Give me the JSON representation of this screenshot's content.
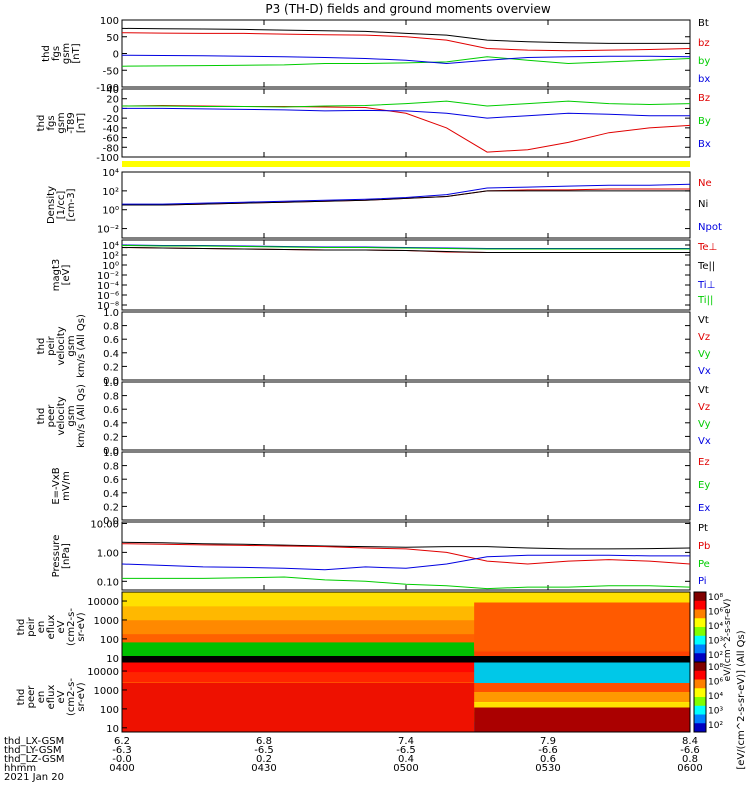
{
  "title": "P3 (TH-D) fields and ground moments overview",
  "colors": {
    "black": "#000000",
    "red": "#e00000",
    "green": "#00cc00",
    "blue": "#0000e0",
    "yellow": "#ffff00"
  },
  "chart_data": [
    {
      "type": "line",
      "id": "fgs_gsm",
      "ylabel": [
        "thd",
        "fgs",
        "gsm",
        "[nT]"
      ],
      "ylim": [
        -100,
        100
      ],
      "yticks": [
        "100",
        "50",
        "0",
        "-50",
        "-100"
      ],
      "tick_values": [
        100,
        50,
        0,
        -50,
        -100
      ],
      "series": [
        {
          "name": "Bt",
          "color": "black",
          "values": [
            75,
            74,
            73,
            72,
            70,
            68,
            66,
            60,
            55,
            40,
            35,
            32,
            30,
            30,
            30
          ]
        },
        {
          "name": "bz",
          "color": "red",
          "values": [
            62,
            61,
            60,
            60,
            58,
            56,
            55,
            50,
            40,
            15,
            10,
            8,
            10,
            12,
            15
          ]
        },
        {
          "name": "by",
          "color": "green",
          "values": [
            -38,
            -37,
            -36,
            -35,
            -34,
            -30,
            -30,
            -28,
            -25,
            -10,
            -20,
            -30,
            -25,
            -20,
            -15
          ]
        },
        {
          "name": "bx",
          "color": "blue",
          "values": [
            -5,
            -6,
            -7,
            -8,
            -10,
            -12,
            -15,
            -20,
            -30,
            -20,
            -12,
            -10,
            -8,
            -8,
            -10
          ]
        }
      ]
    },
    {
      "type": "line",
      "id": "fgs_gsm_t89",
      "ylabel": [
        "thd",
        "fgs",
        "gsm",
        "-T89",
        "[nT]"
      ],
      "ylim": [
        -100,
        40
      ],
      "yticks": [
        "40",
        "20",
        "0",
        "-20",
        "-40",
        "-60",
        "-80",
        "-100"
      ],
      "tick_values": [
        40,
        20,
        0,
        -20,
        -40,
        -60,
        -80,
        -100
      ],
      "series": [
        {
          "name": "Bz",
          "color": "red",
          "values": [
            5,
            6,
            5,
            4,
            4,
            3,
            2,
            -10,
            -40,
            -90,
            -85,
            -70,
            -50,
            -40,
            -35
          ]
        },
        {
          "name": "By",
          "color": "green",
          "values": [
            5,
            5,
            4,
            4,
            3,
            5,
            6,
            10,
            15,
            5,
            10,
            15,
            10,
            8,
            10
          ]
        },
        {
          "name": "Bx",
          "color": "blue",
          "values": [
            0,
            0,
            -1,
            -2,
            -3,
            -5,
            -4,
            -5,
            -10,
            -20,
            -15,
            -10,
            -12,
            -15,
            -15
          ]
        }
      ]
    },
    {
      "type": "line",
      "id": "density",
      "log": true,
      "ylabel": [
        "Density",
        "[1/cc]",
        "[cm-3]"
      ],
      "ylim": [
        -3,
        4
      ],
      "yticks": [
        "10⁴",
        "10²",
        "10⁰",
        "10⁻²"
      ],
      "tick_values": [
        4,
        2,
        0,
        -2
      ],
      "series": [
        {
          "name": "Ne",
          "color": "red",
          "values": [
            0.5,
            0.5,
            0.6,
            0.7,
            0.8,
            0.9,
            1.0,
            1.2,
            1.4,
            2.0,
            2.1,
            2.1,
            2.2,
            2.2,
            2.2
          ]
        },
        {
          "name": "Ni",
          "color": "black",
          "values": [
            0.5,
            0.5,
            0.6,
            0.7,
            0.8,
            0.9,
            1.0,
            1.2,
            1.4,
            2.0,
            2.0,
            2.0,
            2.0,
            2.0,
            2.0
          ]
        },
        {
          "name": "Npot",
          "color": "blue",
          "values": [
            0.6,
            0.6,
            0.7,
            0.8,
            0.9,
            1.0,
            1.1,
            1.3,
            1.6,
            2.3,
            2.4,
            2.5,
            2.6,
            2.6,
            2.7
          ]
        }
      ]
    },
    {
      "type": "line",
      "id": "temperature",
      "log": true,
      "ylabel": [
        "magt3",
        "[eV]"
      ],
      "ylim": [
        -9,
        5
      ],
      "yticks": [
        "10⁴",
        "10²",
        "10⁰",
        "10⁻²",
        "10⁻⁴",
        "10⁻⁶",
        "10⁻⁸"
      ],
      "tick_values": [
        4,
        2,
        0,
        -2,
        -4,
        -6,
        -8
      ],
      "series": [
        {
          "name": "Te⊥",
          "color": "red",
          "values": [
            3.5,
            3.4,
            3.3,
            3.2,
            3.1,
            3.0,
            3.0,
            2.9,
            2.6,
            2.5,
            2.5,
            2.5,
            2.5,
            2.5,
            2.5
          ]
        },
        {
          "name": "Te||",
          "color": "black",
          "values": [
            3.5,
            3.4,
            3.3,
            3.2,
            3.1,
            3.0,
            3.0,
            2.9,
            2.7,
            2.5,
            2.5,
            2.5,
            2.5,
            2.5,
            2.5
          ]
        },
        {
          "name": "Ti⊥",
          "color": "blue",
          "values": [
            4.0,
            3.9,
            3.9,
            3.8,
            3.7,
            3.6,
            3.6,
            3.5,
            3.4,
            3.3,
            3.3,
            3.3,
            3.3,
            3.3,
            3.3
          ]
        },
        {
          "name": "Ti||",
          "color": "green",
          "values": [
            3.9,
            3.8,
            3.8,
            3.7,
            3.6,
            3.5,
            3.5,
            3.4,
            3.3,
            3.2,
            3.2,
            3.2,
            3.2,
            3.2,
            3.2
          ]
        }
      ]
    },
    {
      "type": "line",
      "id": "peir_velocity",
      "ylabel": [
        "thd",
        "peir",
        "velocity",
        "gsm",
        "km/s (All Qs)"
      ],
      "ylim": [
        0,
        1
      ],
      "yticks": [
        "1.0",
        "0.8",
        "0.6",
        "0.4",
        "0.2",
        "0.0"
      ],
      "tick_values": [
        1.0,
        0.8,
        0.6,
        0.4,
        0.2,
        0.0
      ],
      "series": [
        {
          "name": "Vt",
          "color": "black",
          "values": []
        },
        {
          "name": "Vz",
          "color": "red",
          "values": []
        },
        {
          "name": "Vy",
          "color": "green",
          "values": []
        },
        {
          "name": "Vx",
          "color": "blue",
          "values": []
        }
      ]
    },
    {
      "type": "line",
      "id": "peer_velocity",
      "ylabel": [
        "thd",
        "peer",
        "velocity",
        "gsm",
        "km/s (All Qs)"
      ],
      "ylim": [
        0,
        1
      ],
      "yticks": [
        "1.0",
        "0.8",
        "0.6",
        "0.4",
        "0.2",
        "0.0"
      ],
      "tick_values": [
        1.0,
        0.8,
        0.6,
        0.4,
        0.2,
        0.0
      ],
      "series": [
        {
          "name": "Vt",
          "color": "black",
          "values": []
        },
        {
          "name": "Vz",
          "color": "red",
          "values": []
        },
        {
          "name": "Vy",
          "color": "green",
          "values": []
        },
        {
          "name": "Vx",
          "color": "blue",
          "values": []
        }
      ]
    },
    {
      "type": "line",
      "id": "efield",
      "ylabel": [
        "E=-VxB",
        "mV/m"
      ],
      "ylim": [
        0,
        1
      ],
      "yticks": [
        "1.0",
        "0.8",
        "0.6",
        "0.4",
        "0.2",
        "0.0"
      ],
      "tick_values": [
        1.0,
        0.8,
        0.6,
        0.4,
        0.2,
        0.0
      ],
      "series": [
        {
          "name": "Ez",
          "color": "red",
          "values": []
        },
        {
          "name": "Ey",
          "color": "green",
          "values": []
        },
        {
          "name": "Ex",
          "color": "blue",
          "values": []
        }
      ]
    },
    {
      "type": "line",
      "id": "pressure",
      "log": true,
      "ylabel": [
        "Pressure",
        "[nPa]"
      ],
      "ylim": [
        -1.3,
        1.05
      ],
      "yticks": [
        "10.00",
        "1.00",
        "0.10"
      ],
      "tick_values": [
        1,
        0,
        -1
      ],
      "series": [
        {
          "name": "Pt",
          "color": "black",
          "values": [
            0.35,
            0.33,
            0.3,
            0.28,
            0.25,
            0.22,
            0.2,
            0.18,
            0.2,
            0.2,
            0.15,
            0.12,
            0.12,
            0.13,
            0.15
          ]
        },
        {
          "name": "Pb",
          "color": "red",
          "values": [
            0.3,
            0.28,
            0.26,
            0.24,
            0.22,
            0.2,
            0.15,
            0.12,
            0.0,
            -0.3,
            -0.4,
            -0.3,
            -0.25,
            -0.3,
            -0.4
          ]
        },
        {
          "name": "Pe",
          "color": "green",
          "values": [
            -0.9,
            -0.9,
            -0.9,
            -0.88,
            -0.85,
            -0.95,
            -1.0,
            -1.1,
            -1.15,
            -1.25,
            -1.2,
            -1.2,
            -1.15,
            -1.15,
            -1.2
          ]
        },
        {
          "name": "Pi",
          "color": "blue",
          "values": [
            -0.4,
            -0.45,
            -0.5,
            -0.52,
            -0.55,
            -0.6,
            -0.5,
            -0.55,
            -0.4,
            -0.15,
            -0.1,
            -0.1,
            -0.1,
            -0.12,
            -0.12
          ]
        }
      ]
    },
    {
      "type": "heatmap",
      "id": "peir_spectrogram",
      "ylabel": [
        "thd",
        "peir",
        "en",
        "eflux",
        "eV",
        "(cm2-s-",
        "sr-eV)"
      ],
      "yticks": [
        "10000",
        "1000",
        "100",
        "10"
      ],
      "tick_values": [
        10000,
        1000,
        100,
        10
      ],
      "ylim": [
        6,
        30000
      ]
    },
    {
      "type": "heatmap",
      "id": "peer_spectrogram",
      "ylabel": [
        "thd",
        "peer",
        "en",
        "eflux",
        "eV",
        "(cm2-s-",
        "sr-eV)"
      ],
      "yticks": [
        "10000",
        "1000",
        "100",
        "10"
      ],
      "tick_values": [
        10000,
        1000,
        100,
        10
      ],
      "ylim": [
        6,
        30000
      ]
    }
  ],
  "colorbars": [
    {
      "ticks": [
        "10⁸",
        "10⁶",
        "10⁴",
        "10³",
        "10²"
      ]
    },
    {
      "ticks": [
        "10⁸",
        "10⁶",
        "10⁴",
        "10³",
        "10²"
      ]
    }
  ],
  "colorbar_label": "[eV/(cm^2-s-sr-eV)] (All Qs)",
  "colorbar_label_top": "eV/(cm^2-s-sr-eV)",
  "x_axis": {
    "row_labels": [
      "thd_LX-GSM",
      "thd_LY-GSM",
      "thd_LZ-GSM",
      "hhmm",
      "2021 Jan 20"
    ],
    "columns": [
      {
        "lx": "6.2",
        "ly": "-6.3",
        "lz": "-0.0",
        "hhmm": "0400"
      },
      {
        "lx": "6.8",
        "ly": "-6.5",
        "lz": "0.2",
        "hhmm": "0430"
      },
      {
        "lx": "7.4",
        "ly": "-6.5",
        "lz": "0.4",
        "hhmm": "0500"
      },
      {
        "lx": "7.9",
        "ly": "-6.6",
        "lz": "0.6",
        "hhmm": "0530"
      },
      {
        "lx": "8.4",
        "ly": "-6.6",
        "lz": "0.8",
        "hhmm": "0600"
      }
    ]
  }
}
